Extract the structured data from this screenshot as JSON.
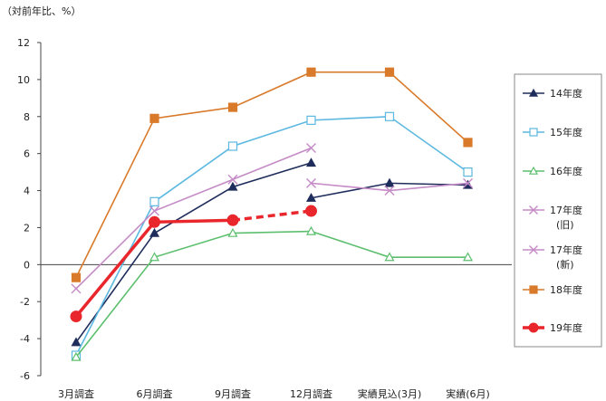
{
  "chart_data": {
    "type": "line",
    "unit_label": "（対前年比、%）",
    "categories": [
      "3月調査",
      "6月調査",
      "9月調査",
      "12月調査",
      "実績見込(3月)",
      "実績(6月)"
    ],
    "ylim": [
      -6,
      12
    ],
    "yticks": [
      "12",
      "10",
      "8",
      "6",
      "4",
      "2",
      "0",
      "-2",
      "-4",
      "-6"
    ],
    "legend_position": "right",
    "series": [
      {
        "name": "14年度",
        "color": "#1f2d5c",
        "marker": "triangle-filled",
        "segments": [
          [
            [
              0,
              -4.2
            ],
            [
              1,
              1.7
            ],
            [
              2,
              4.2
            ],
            [
              3,
              5.5
            ]
          ],
          [
            [
              3,
              3.6
            ],
            [
              4,
              4.4
            ],
            [
              5,
              4.3
            ]
          ]
        ]
      },
      {
        "name": "15年度",
        "color": "#5cb8e0",
        "marker": "square-open",
        "segments": [
          [
            [
              0,
              -4.9
            ],
            [
              1,
              3.4
            ],
            [
              2,
              6.4
            ],
            [
              3,
              7.8
            ],
            [
              4,
              8.0
            ],
            [
              5,
              5.0
            ]
          ]
        ]
      },
      {
        "name": "16年度",
        "color": "#5cbf6e",
        "marker": "triangle-open",
        "segments": [
          [
            [
              0,
              -5.0
            ],
            [
              1,
              0.4
            ],
            [
              2,
              1.7
            ],
            [
              3,
              1.8
            ],
            [
              4,
              0.4
            ],
            [
              5,
              0.4
            ]
          ]
        ]
      },
      {
        "name": "17年度",
        "name_sub": "(旧)",
        "color": "#c58bc7",
        "marker": "x",
        "segments": [
          [
            [
              3,
              4.4
            ],
            [
              4,
              4.0
            ],
            [
              5,
              4.4
            ]
          ]
        ]
      },
      {
        "name": "17年度",
        "name_sub": "(新)",
        "color": "#c58bc7",
        "marker": "x",
        "segments": [
          [
            [
              0,
              -1.3
            ],
            [
              1,
              2.9
            ],
            [
              2,
              4.6
            ],
            [
              3,
              6.3
            ]
          ]
        ]
      },
      {
        "name": "18年度",
        "color": "#d97a2a",
        "marker": "square-filled",
        "segments": [
          [
            [
              0,
              -0.7
            ],
            [
              1,
              7.9
            ],
            [
              2,
              8.5
            ],
            [
              3,
              10.4
            ],
            [
              4,
              10.4
            ],
            [
              5,
              6.6
            ]
          ]
        ]
      },
      {
        "name": "19年度",
        "color": "#e8262b",
        "marker": "circle-filled",
        "segments": [
          [
            [
              0,
              -2.8
            ],
            [
              1,
              2.3
            ],
            [
              2,
              2.4
            ]
          ]
        ],
        "dashed_segments": [
          [
            [
              2,
              2.4
            ],
            [
              3,
              2.9
            ]
          ]
        ]
      }
    ]
  }
}
